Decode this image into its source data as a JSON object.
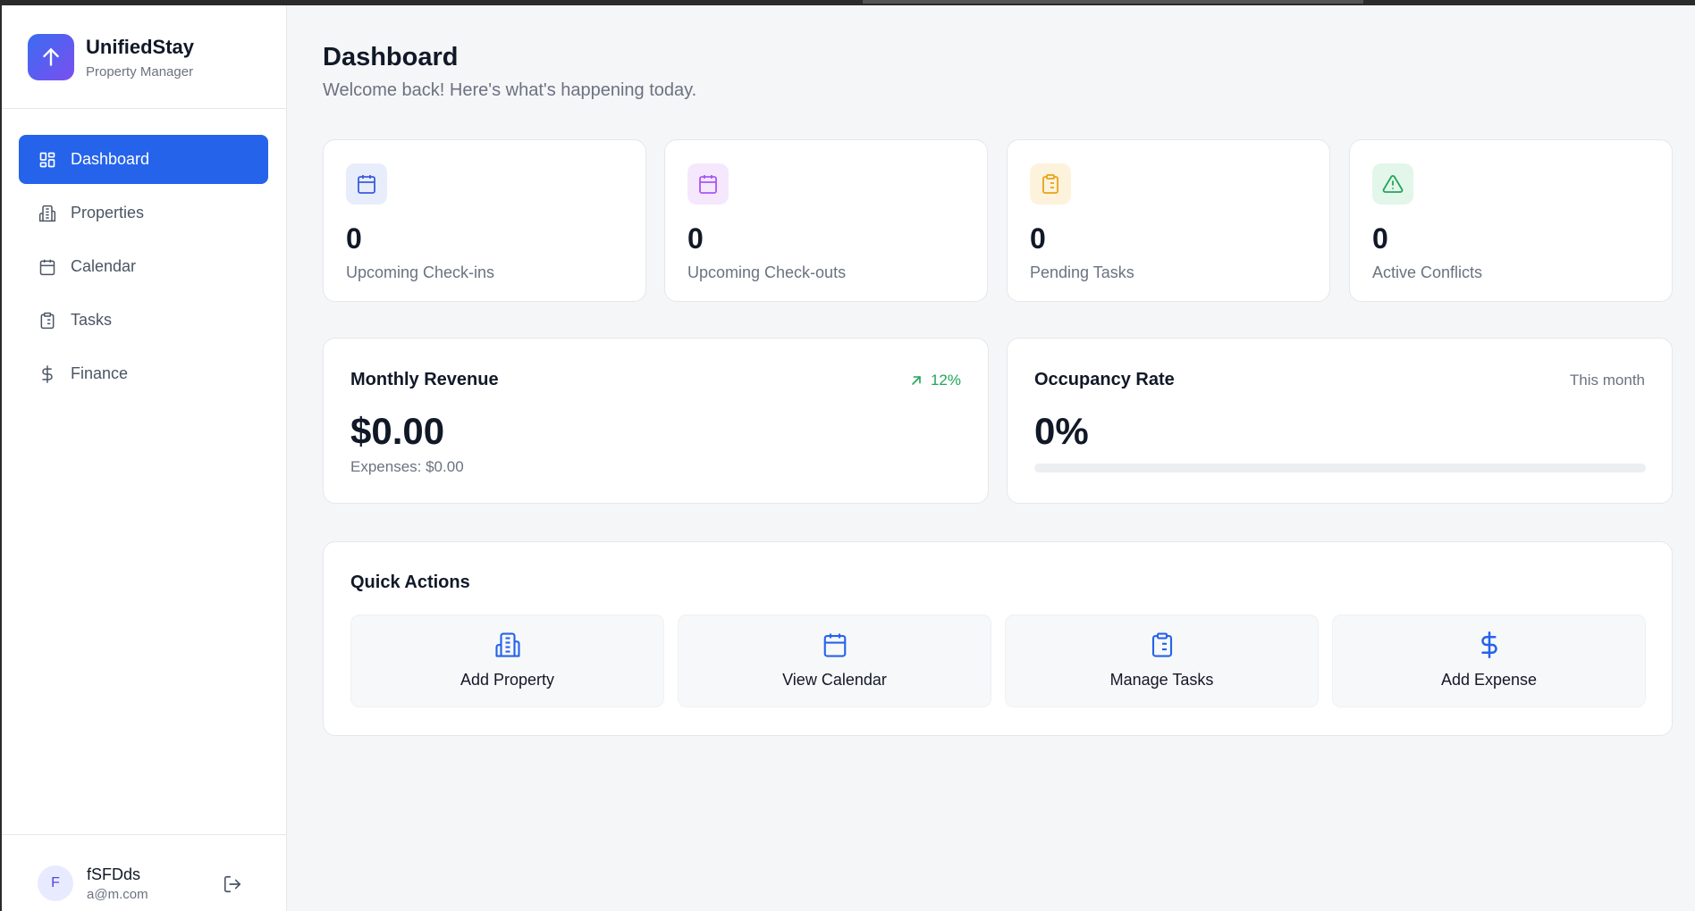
{
  "app": {
    "name": "UnifiedStay",
    "subtitle": "Property Manager"
  },
  "sidebar": {
    "items": [
      {
        "label": "Dashboard",
        "icon": "dashboard-icon",
        "active": true
      },
      {
        "label": "Properties",
        "icon": "building-icon",
        "active": false
      },
      {
        "label": "Calendar",
        "icon": "calendar-icon",
        "active": false
      },
      {
        "label": "Tasks",
        "icon": "clipboard-icon",
        "active": false
      },
      {
        "label": "Finance",
        "icon": "dollar-icon",
        "active": false
      }
    ]
  },
  "user": {
    "initial": "F",
    "name": "fSFDds",
    "email": "a@m.com"
  },
  "header": {
    "title": "Dashboard",
    "subtitle": "Welcome back! Here's what's happening today."
  },
  "stats": [
    {
      "value": "0",
      "label": "Upcoming Check-ins",
      "icon": "calendar-icon",
      "color": "#3b5bdb",
      "bg": "#e7edfb"
    },
    {
      "value": "0",
      "label": "Upcoming Check-outs",
      "icon": "calendar-icon",
      "color": "#a855f7",
      "bg": "#f5e8fd"
    },
    {
      "value": "0",
      "label": "Pending Tasks",
      "icon": "clipboard-icon",
      "color": "#e8a317",
      "bg": "#fdf2dc"
    },
    {
      "value": "0",
      "label": "Active Conflicts",
      "icon": "alert-triangle-icon",
      "color": "#22a55a",
      "bg": "#e3f6ea"
    }
  ],
  "revenue": {
    "title": "Monthly Revenue",
    "trend": "12%",
    "amount": "$0.00",
    "expenses": "Expenses: $0.00"
  },
  "occupancy": {
    "title": "Occupancy Rate",
    "period": "This month",
    "value": "0%",
    "fill_fraction": 0
  },
  "quick_actions": {
    "title": "Quick Actions",
    "items": [
      {
        "label": "Add Property",
        "icon": "building-icon"
      },
      {
        "label": "View Calendar",
        "icon": "calendar-icon"
      },
      {
        "label": "Manage Tasks",
        "icon": "clipboard-icon"
      },
      {
        "label": "Add Expense",
        "icon": "dollar-icon"
      }
    ]
  },
  "colors": {
    "primary": "#2563eb",
    "success": "#22a55a"
  }
}
